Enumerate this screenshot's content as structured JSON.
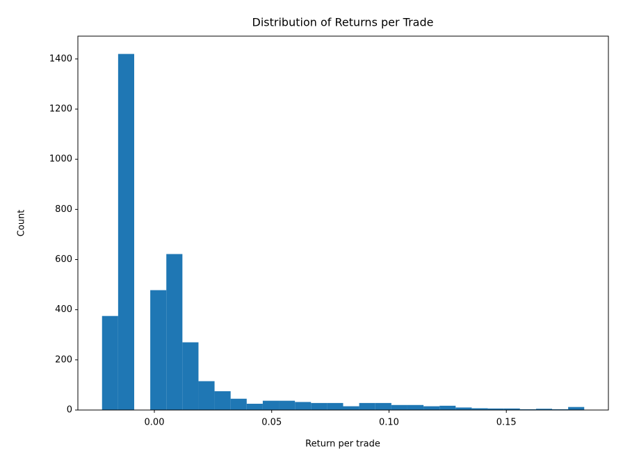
{
  "chart_data": {
    "type": "histogram",
    "title": "Distribution of Returns per Trade",
    "xlabel": "Return per trade",
    "ylabel": "Count",
    "bins": [
      -0.0223,
      -0.01545,
      -0.0086,
      -0.00175,
      0.0051,
      0.01195,
      0.0188,
      0.02565,
      0.0325,
      0.03935,
      0.0462,
      0.05305,
      0.0599,
      0.06675,
      0.0736,
      0.08045,
      0.0873,
      0.09415,
      0.101,
      0.10785,
      0.1147,
      0.12155,
      0.1284,
      0.13525,
      0.1421,
      0.14895,
      0.1558,
      0.16265,
      0.1695,
      0.17635,
      0.1832
    ],
    "values": [
      375,
      1420,
      0,
      478,
      622,
      270,
      115,
      75,
      45,
      25,
      37,
      37,
      32,
      28,
      28,
      15,
      28,
      28,
      20,
      20,
      15,
      17,
      10,
      7,
      6,
      6,
      3,
      5,
      3,
      12
    ],
    "color": "#1f77b4",
    "xlim": [
      -0.0326,
      0.1935
    ],
    "xticks": [
      {
        "value": 0,
        "label": "0.00"
      },
      {
        "value": 0.05,
        "label": "0.05"
      },
      {
        "value": 0.1,
        "label": "0.10"
      },
      {
        "value": 0.15,
        "label": "0.15"
      }
    ],
    "ylim": [
      0,
      1491
    ],
    "yticks": [
      0,
      200,
      400,
      600,
      800,
      1000,
      1200,
      1400
    ]
  }
}
